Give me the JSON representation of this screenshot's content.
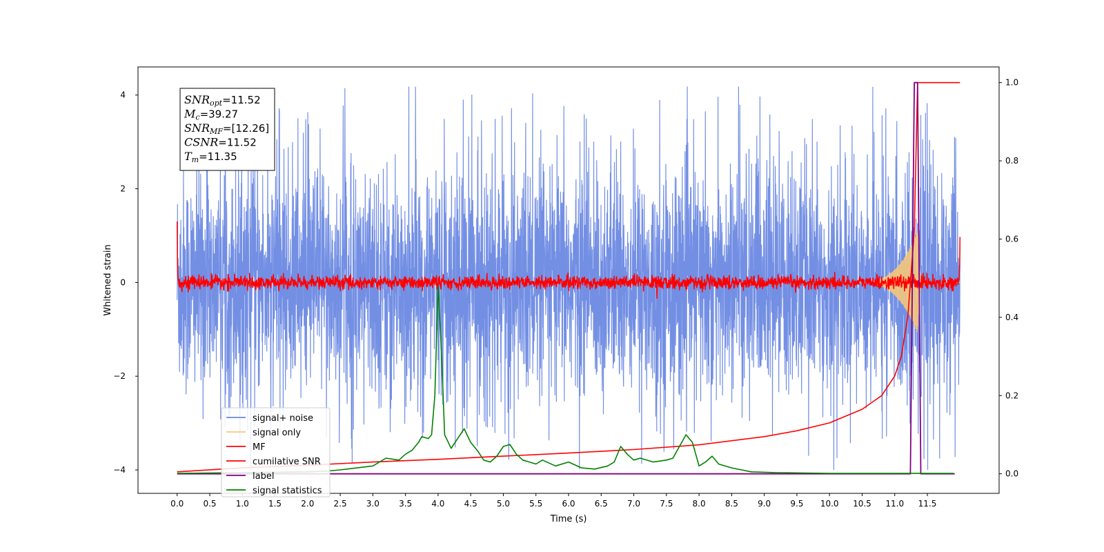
{
  "chart_data": {
    "type": "line",
    "xlabel": "Time (s)",
    "ylabel": "Whitened strain",
    "xlim": [
      -0.6,
      12.6
    ],
    "ylim_left": [
      -4.5,
      4.6
    ],
    "ylim_right": [
      -0.05,
      1.04
    ],
    "x_ticks": [
      "0.0",
      "0.5",
      "1.0",
      "1.5",
      "2.0",
      "2.5",
      "3.0",
      "3.5",
      "4.0",
      "4.5",
      "5.0",
      "5.5",
      "6.0",
      "6.5",
      "7.0",
      "7.5",
      "8.0",
      "8.5",
      "9.0",
      "9.5",
      "10.0",
      "10.5",
      "11.0",
      "11.5"
    ],
    "y_ticks_left": [
      "4",
      "2",
      "0",
      "−2",
      "−4"
    ],
    "y_ticks_right": [
      "1.0",
      "0.8",
      "0.6",
      "0.4",
      "0.2",
      "0.0"
    ],
    "legend_position": "lower-left",
    "annotation": {
      "lines": [
        {
          "sym": "SNR",
          "sub": "opt",
          "val": "=11.52"
        },
        {
          "sym": "M",
          "sub": "c",
          "val": "=39.27"
        },
        {
          "sym": "SNR",
          "sub": "MF",
          "val": "=[12.26]"
        },
        {
          "sym": "CSNR",
          "sub": "",
          "val": "=11.52"
        },
        {
          "sym": "T",
          "sub": "m",
          "val": "=11.35"
        }
      ]
    },
    "series": [
      {
        "name": "signal+ noise",
        "color": "#6b89e3",
        "axis": "left",
        "x_range": [
          0,
          12
        ],
        "amplitude_typical": 1.2,
        "peak_max": 4.18,
        "peak_min": -4.0
      },
      {
        "name": "signal only",
        "color": "#f5c87a",
        "axis": "left",
        "x_range": [
          0,
          12
        ],
        "chirp_peak_time": 11.35,
        "chirp_peak_amplitude": 1.1
      },
      {
        "name": "MF",
        "color": "#ff0000",
        "axis": "left",
        "x_range": [
          0,
          12
        ],
        "amplitude_typical": 0.12
      },
      {
        "name": "cumilative SNR",
        "color": "#ff0000",
        "axis": "right",
        "x": [
          0,
          1,
          2,
          3,
          4,
          5,
          6,
          7,
          8,
          9,
          9.5,
          10,
          10.5,
          10.8,
          11.0,
          11.1,
          11.2,
          11.3,
          11.35,
          11.4,
          12.0
        ],
        "values": [
          0.005,
          0.015,
          0.022,
          0.03,
          0.037,
          0.045,
          0.053,
          0.062,
          0.074,
          0.095,
          0.11,
          0.13,
          0.165,
          0.2,
          0.25,
          0.3,
          0.4,
          0.62,
          1.0,
          1.0,
          1.0
        ]
      },
      {
        "name": "label",
        "color": "#800080",
        "axis": "right",
        "x": [
          0,
          11.24,
          11.3,
          11.35,
          11.4,
          11.45,
          11.92
        ],
        "values": [
          0.0,
          0.0,
          1.0,
          1.0,
          0.0,
          0.0,
          0.0
        ]
      },
      {
        "name": "signal statistics",
        "color": "#008000",
        "axis": "right",
        "x": [
          0,
          1.0,
          1.5,
          2.0,
          2.3,
          2.5,
          2.8,
          3.0,
          3.2,
          3.4,
          3.5,
          3.6,
          3.7,
          3.75,
          3.85,
          3.9,
          3.95,
          4.0,
          4.05,
          4.1,
          4.2,
          4.3,
          4.4,
          4.5,
          4.6,
          4.7,
          4.8,
          4.9,
          5.0,
          5.1,
          5.2,
          5.3,
          5.5,
          5.6,
          5.8,
          6.0,
          6.2,
          6.4,
          6.6,
          6.7,
          6.8,
          6.9,
          7.0,
          7.1,
          7.3,
          7.5,
          7.6,
          7.7,
          7.8,
          7.9,
          8.0,
          8.1,
          8.2,
          8.3,
          8.5,
          8.8,
          9.2,
          9.6,
          10.0,
          10.5,
          11.0,
          11.5,
          11.9
        ],
        "values": [
          0.001,
          0.003,
          0.004,
          0.005,
          0.007,
          0.01,
          0.016,
          0.02,
          0.04,
          0.035,
          0.05,
          0.06,
          0.08,
          0.095,
          0.09,
          0.1,
          0.2,
          0.48,
          0.32,
          0.1,
          0.065,
          0.09,
          0.115,
          0.08,
          0.06,
          0.035,
          0.03,
          0.045,
          0.07,
          0.075,
          0.05,
          0.035,
          0.025,
          0.035,
          0.02,
          0.03,
          0.015,
          0.012,
          0.02,
          0.03,
          0.07,
          0.05,
          0.035,
          0.04,
          0.03,
          0.035,
          0.04,
          0.07,
          0.1,
          0.08,
          0.02,
          0.03,
          0.045,
          0.025,
          0.015,
          0.005,
          0.003,
          0.002,
          0.001,
          0.001,
          0.001,
          0.001,
          0.001
        ]
      }
    ]
  }
}
